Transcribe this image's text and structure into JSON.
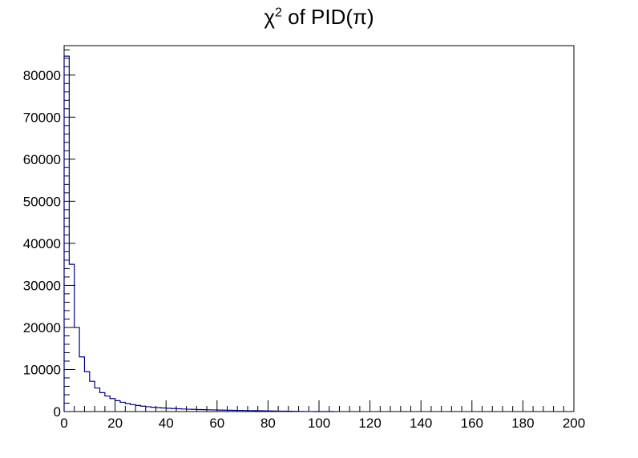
{
  "chart_data": {
    "type": "bar",
    "title": {
      "base": "χ",
      "sup": "2",
      "rest": " of PID(π)"
    },
    "xlabel": "",
    "ylabel": "",
    "xlim": [
      0,
      200
    ],
    "ylim": [
      0,
      87000
    ],
    "x_ticks": [
      0,
      20,
      40,
      60,
      80,
      100,
      120,
      140,
      160,
      180,
      200
    ],
    "y_ticks": [
      0,
      10000,
      20000,
      30000,
      40000,
      50000,
      60000,
      70000,
      80000
    ],
    "bin_width": 2,
    "series": [
      {
        "color": "#000080",
        "bin_edges_start": 0,
        "values": [
          84500,
          35000,
          20000,
          13000,
          9500,
          7200,
          5600,
          4500,
          3700,
          3100,
          2600,
          2200,
          1900,
          1650,
          1450,
          1280,
          1150,
          1030,
          930,
          850,
          780,
          720,
          660,
          610,
          560,
          520,
          480,
          450,
          420,
          390,
          360,
          335,
          310,
          290,
          270,
          250,
          230,
          210,
          190,
          170,
          150,
          130,
          110,
          90,
          70,
          50,
          30,
          15,
          8,
          4,
          2,
          1,
          0
        ]
      }
    ],
    "grid": false
  }
}
